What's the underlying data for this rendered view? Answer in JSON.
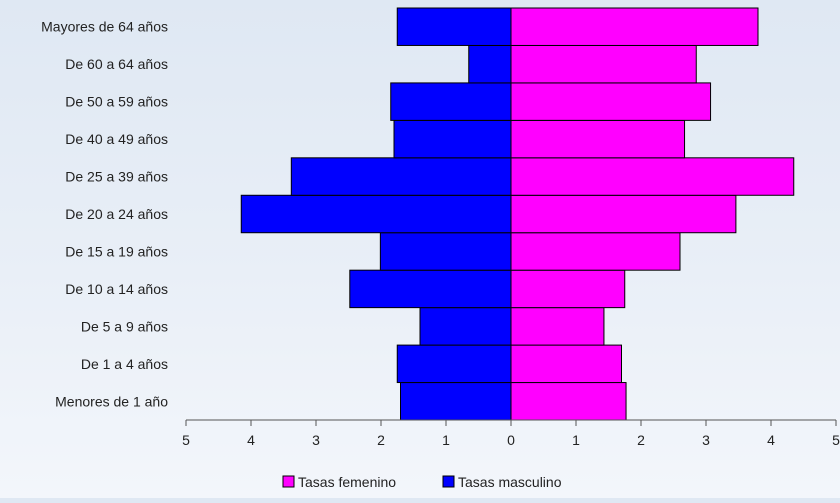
{
  "chart_data": {
    "type": "bar",
    "orientation": "horizontal",
    "subtype": "population-pyramid",
    "title": "",
    "xlabel": "",
    "ylabel": "",
    "xlim": [
      -5,
      5
    ],
    "x_ticks": [
      -5,
      -4,
      -3,
      -2,
      -1,
      0,
      1,
      2,
      3,
      4,
      5
    ],
    "x_tick_labels": [
      "5",
      "4",
      "3",
      "2",
      "1",
      "0",
      "1",
      "2",
      "3",
      "4",
      "5"
    ],
    "grid": false,
    "legend_position": "bottom",
    "categories": [
      "Menores de 1 año",
      "De 1 a 4 años",
      "De 5 a 9 años",
      "De 10 a 14 años",
      "De 15 a 19 años",
      "De 20 a 24 años",
      "De 25 a 39 años",
      "De 40 a 49 años",
      "De 50 a 59 años",
      "De 60 a 64 años",
      "Mayores de 64 años"
    ],
    "series": [
      {
        "name": "Tasas femenino",
        "color": "#ff00ff",
        "side": "right",
        "values": [
          1.77,
          1.7,
          1.43,
          1.75,
          2.6,
          3.46,
          4.35,
          2.67,
          3.07,
          2.85,
          3.8
        ]
      },
      {
        "name": "Tasas masculino",
        "color": "#0000ff",
        "side": "left",
        "values": [
          1.7,
          1.75,
          1.4,
          2.48,
          2.01,
          4.15,
          3.38,
          1.8,
          1.85,
          0.65,
          1.75
        ]
      }
    ]
  }
}
